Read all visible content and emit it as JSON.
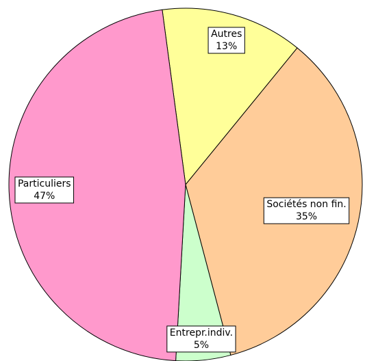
{
  "chart_data": {
    "type": "pie",
    "categories": [
      "Autres",
      "Sociétés non fin.",
      "Entrepr.indiv.",
      "Particuliers"
    ],
    "values": [
      13,
      35,
      5,
      47
    ],
    "value_labels": [
      "13%",
      "35%",
      "5%",
      "47%"
    ],
    "colors": [
      "#ffff99",
      "#ffcc99",
      "#ccffcc",
      "#ff99cc"
    ]
  }
}
